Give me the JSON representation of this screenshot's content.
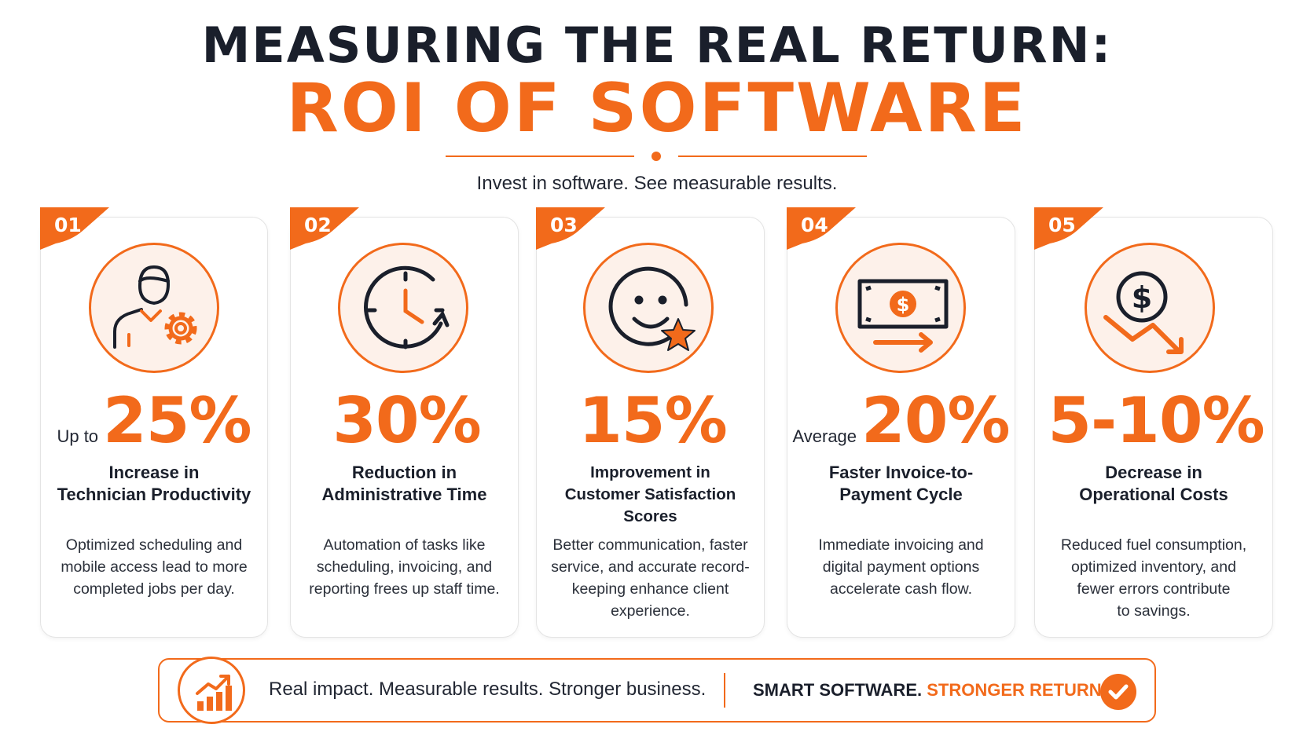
{
  "header": {
    "title_line1": "MEASURING THE REAL RETURN:",
    "title_line2": "ROI OF SOFTWARE",
    "subtitle": "Invest in software. See measurable results."
  },
  "colors": {
    "accent": "#f26a1b",
    "dark": "#1a1f2b",
    "icon_bg": "#fdf1ea"
  },
  "cards": [
    {
      "number": "01",
      "icon": "technician-gear-icon",
      "prefix": "Up to",
      "value": "25%",
      "label_line1": "Increase in",
      "label_line2": "Technician Productivity",
      "desc_line1": "Optimized scheduling and",
      "desc_line2": "mobile access lead to more",
      "desc_line3": "completed jobs per day.",
      "desc_line4": ""
    },
    {
      "number": "02",
      "icon": "clock-icon",
      "prefix": "",
      "value": "30%",
      "label_line1": "Reduction in",
      "label_line2": "Administrative Time",
      "desc_line1": "Automation of tasks like",
      "desc_line2": "scheduling, invoicing, and",
      "desc_line3": "reporting frees up staff time.",
      "desc_line4": ""
    },
    {
      "number": "03",
      "icon": "smiley-star-icon",
      "prefix": "",
      "value": "15%",
      "label_line1": "Improvement in",
      "label_line2": "Customer Satisfaction Scores",
      "desc_line1": "Better communication, faster",
      "desc_line2": "service, and accurate record-",
      "desc_line3": "keeping enhance client",
      "desc_line4": "experience."
    },
    {
      "number": "04",
      "icon": "cash-arrow-icon",
      "prefix": "Average",
      "value": "20%",
      "label_line1": "Faster Invoice-to-",
      "label_line2": "Payment Cycle",
      "desc_line1": "Immediate invoicing and",
      "desc_line2": "digital payment options",
      "desc_line3": "accelerate cash flow.",
      "desc_line4": ""
    },
    {
      "number": "05",
      "icon": "dollar-down-icon",
      "prefix": "",
      "value": "5-10%",
      "label_line1": "Decrease in",
      "label_line2": "Operational Costs",
      "desc_line1": "Reduced fuel consumption,",
      "desc_line2": "optimized inventory, and",
      "desc_line3": "fewer errors contribute",
      "desc_line4": "to savings."
    }
  ],
  "footer": {
    "icon": "growth-chart-icon",
    "text": "Real impact. Measurable results. Stronger business.",
    "tag_dark": "SMART SOFTWARE.",
    "tag_accent": "STRONGER RETURNS.",
    "check_icon": "check-icon"
  }
}
